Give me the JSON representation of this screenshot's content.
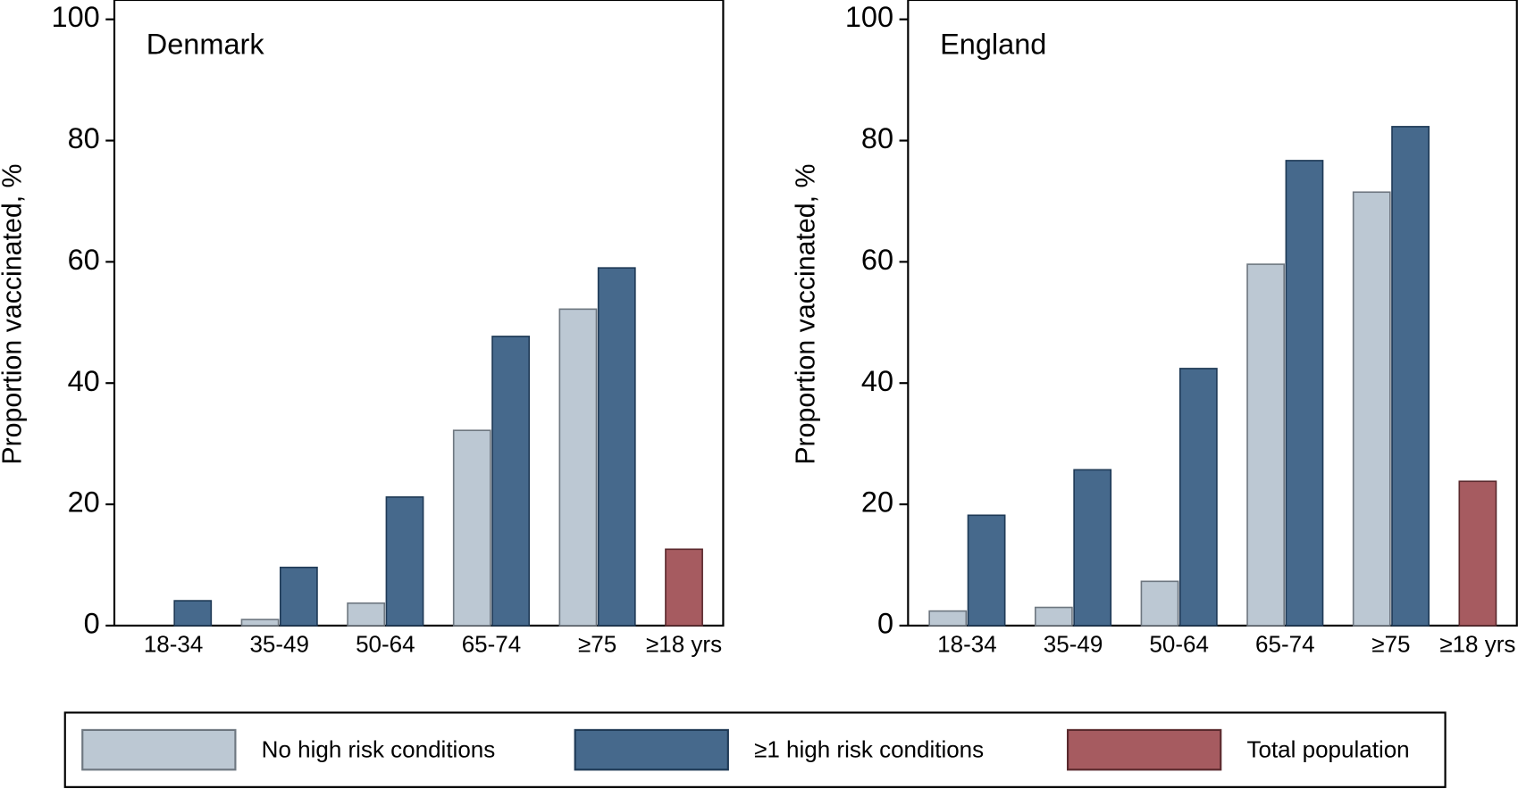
{
  "chart_data": [
    {
      "type": "bar",
      "title": "Denmark",
      "ylabel": "Proportion vaccinated, %",
      "categories": [
        "18-34",
        "35-49",
        "50-64",
        "65-74",
        "≥75",
        "≥18 yrs"
      ],
      "series": [
        {
          "name": "No high risk conditions",
          "color": "#bcc8d3",
          "values": [
            0,
            1.0,
            3.7,
            32.2,
            52.2,
            null
          ]
        },
        {
          "name": "≥1 high risk conditions",
          "color": "#46698c",
          "values": [
            4.1,
            9.6,
            21.2,
            47.7,
            59.0,
            null
          ]
        },
        {
          "name": "Total population",
          "color": "#a65b60",
          "values": [
            null,
            null,
            null,
            null,
            null,
            12.6
          ]
        }
      ],
      "ylim": [
        0,
        100
      ],
      "yticks": [
        0,
        20,
        40,
        60,
        80,
        100
      ],
      "grid": false
    },
    {
      "type": "bar",
      "title": "England",
      "ylabel": "Proportion vaccinated, %",
      "categories": [
        "18-34",
        "35-49",
        "50-64",
        "65-74",
        "≥75",
        "≥18 yrs"
      ],
      "series": [
        {
          "color": "#bcc8d3",
          "values": [
            2.4,
            3.0,
            7.3,
            59.6,
            71.5,
            null
          ]
        },
        {
          "color": "#46698c",
          "values": [
            18.2,
            25.7,
            42.4,
            76.7,
            82.3,
            null
          ]
        },
        {
          "color": "#a65b60",
          "values": [
            null,
            null,
            null,
            null,
            null,
            23.8
          ]
        }
      ],
      "ylim": [
        0,
        100
      ],
      "yticks": [
        0,
        20,
        40,
        60,
        80,
        100
      ],
      "grid": false
    }
  ]
}
